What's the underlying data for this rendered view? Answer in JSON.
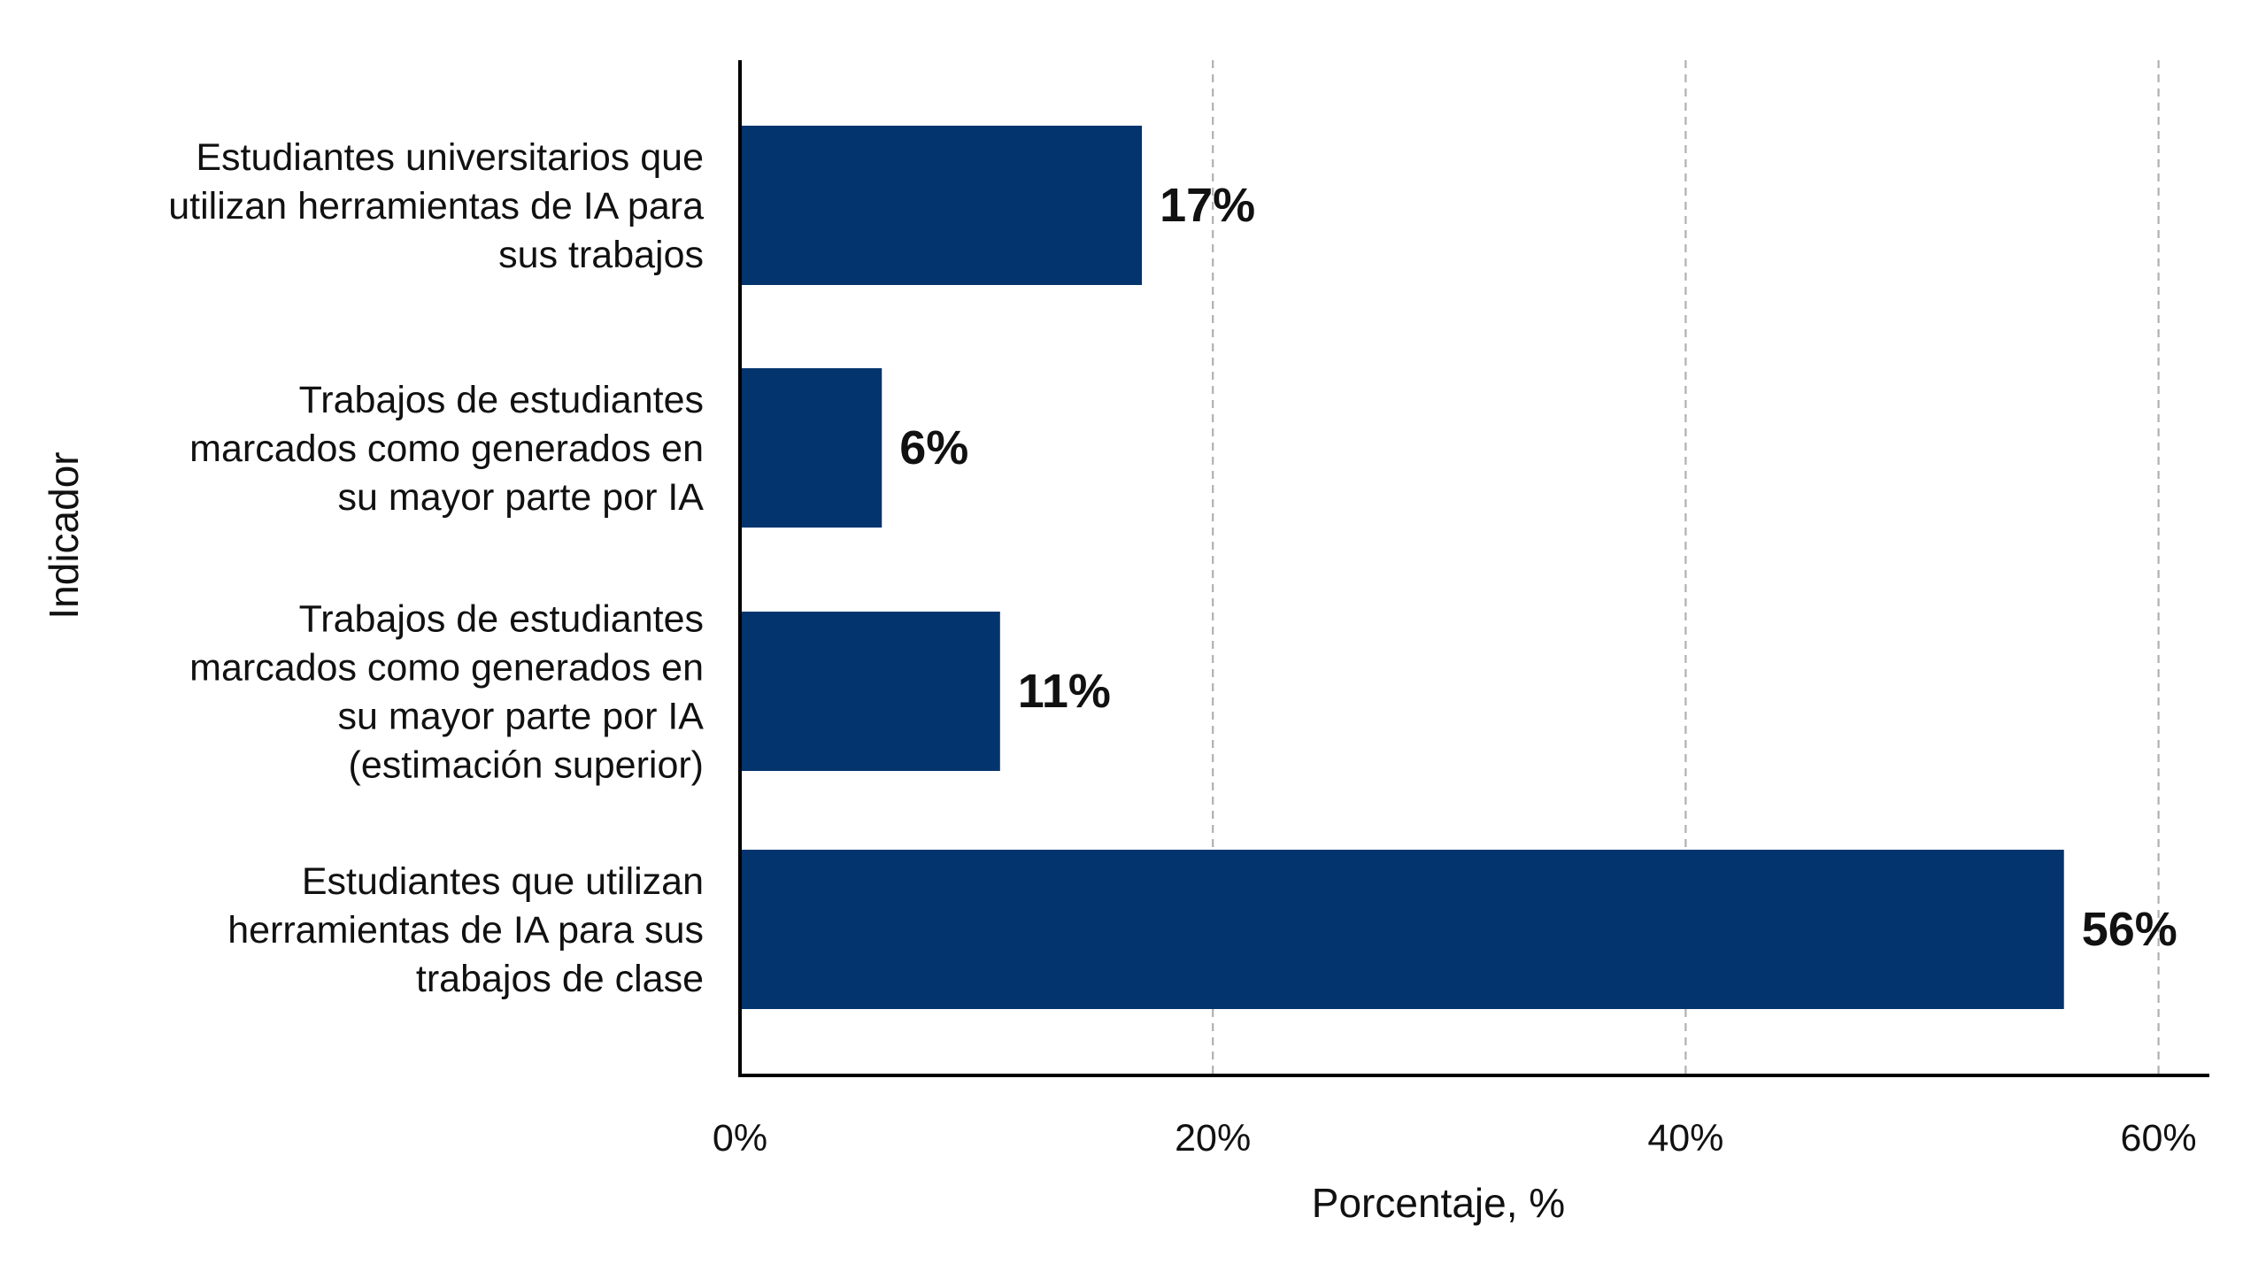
{
  "chart_data": {
    "type": "bar",
    "orientation": "horizontal",
    "categories": [
      "Estudiantes universitarios que utilizan herramientas de IA para sus trabajos",
      "Trabajos de estudiantes marcados como generados en su mayor parte por IA",
      "Trabajos de estudiantes marcados como generados en su mayor parte por IA (estimación superior)",
      "Estudiantes que utilizan herramientas de IA para sus trabajos de clase"
    ],
    "category_lines": [
      [
        "Estudiantes universitarios que",
        "utilizan herramientas de IA para",
        "sus trabajos"
      ],
      [
        "Trabajos de estudiantes",
        "marcados como generados en",
        "su mayor parte por IA"
      ],
      [
        "Trabajos de estudiantes",
        "marcados como generados en",
        "su mayor parte por IA",
        "(estimación superior)"
      ],
      [
        "Estudiantes que utilizan",
        "herramientas de IA para sus",
        "trabajos de clase"
      ]
    ],
    "values": [
      17,
      6,
      11,
      56
    ],
    "data_labels": [
      "17%",
      "6%",
      "11%",
      "56%"
    ],
    "xlabel": "Porcentaje, %",
    "ylabel": "Indicador",
    "xlim": [
      0,
      62
    ],
    "xticks": [
      0,
      20,
      40,
      60
    ],
    "xtick_labels": [
      "0%",
      "20%",
      "40%",
      "60%"
    ],
    "grid": "vertical dashed",
    "bar_color": "#03346e",
    "axis_color": "#000000",
    "grid_color": "#b0b0b0",
    "text_color": "#111111"
  }
}
